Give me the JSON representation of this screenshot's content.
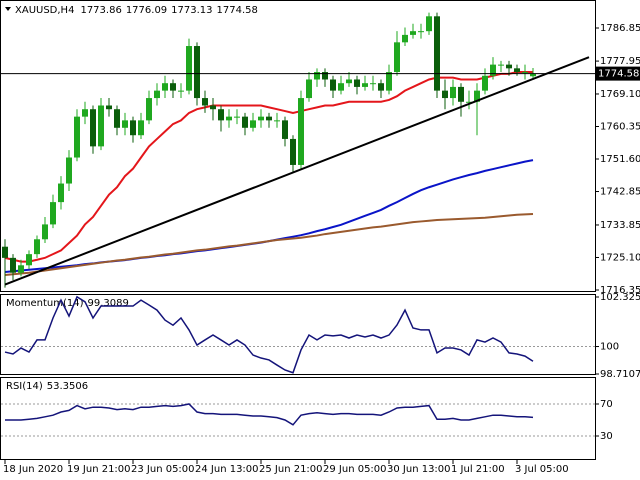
{
  "chart_data": [
    {
      "type": "candlestick",
      "title": "XAUUSD,H4",
      "categories": [
        "18 Jun 2020",
        null,
        null,
        null,
        null,
        null,
        null,
        null,
        "19 Jun 21:00",
        null,
        null,
        null,
        null,
        null,
        null,
        null,
        "23 Jun 05:00",
        null,
        null,
        null,
        null,
        null,
        null,
        null,
        "24 Jun 13:00",
        null,
        null,
        null,
        null,
        null,
        null,
        null,
        "25 Jun 21:00",
        null,
        null,
        null,
        null,
        null,
        null,
        null,
        "29 Jun 05:00",
        null,
        null,
        null,
        null,
        null,
        null,
        null,
        "30 Jun 13:00",
        null,
        null,
        null,
        null,
        null,
        null,
        null,
        "1 Jul 21:00",
        null,
        null,
        null,
        null,
        null,
        null,
        null,
        "3 Jul 05:00",
        null,
        null
      ],
      "open": [
        1728,
        1725,
        1721,
        1723,
        1726,
        1730,
        1734,
        1740,
        1745,
        1752,
        1763,
        1765,
        1755,
        1766,
        1765,
        1760,
        1762,
        1758,
        1762,
        1768,
        1770,
        1772,
        1770,
        1770,
        1782,
        1768,
        1766,
        1765,
        1762,
        1763,
        1763,
        1760,
        1762,
        1763,
        1762,
        1762,
        1757,
        1750,
        1768,
        1773,
        1775,
        1773,
        1770,
        1772,
        1773,
        1771,
        1772,
        1772,
        1770,
        1775,
        1783,
        1785,
        1786,
        1786,
        1790,
        1770,
        1768,
        1771,
        1767,
        1767,
        1770,
        1774,
        1777,
        1777,
        1776,
        1775,
        1773.86
      ],
      "high": [
        1730,
        1726,
        1724.5,
        1727,
        1731,
        1736,
        1742,
        1747,
        1754,
        1765,
        1767,
        1766,
        1768,
        1768,
        1766,
        1764,
        1763,
        1764,
        1770,
        1772,
        1774,
        1773,
        1772,
        1784,
        1783,
        1770,
        1768,
        1766,
        1765,
        1765,
        1764,
        1764,
        1765,
        1764,
        1764,
        1763,
        1758,
        1770,
        1775,
        1776,
        1776,
        1774,
        1774,
        1775,
        1774,
        1774,
        1774,
        1773,
        1777,
        1786,
        1787,
        1788,
        1788,
        1791,
        1791,
        1773,
        1773,
        1772,
        1770,
        1772,
        1776,
        1779,
        1778,
        1778,
        1777,
        1777,
        1776.09
      ],
      "low": [
        1717,
        1719,
        1720,
        1722,
        1725,
        1729,
        1733,
        1738,
        1743,
        1751,
        1761,
        1753,
        1754,
        1763,
        1758,
        1758,
        1756,
        1757,
        1761,
        1766,
        1768,
        1768,
        1768,
        1769,
        1766,
        1764,
        1762,
        1759,
        1760,
        1761,
        1758,
        1759,
        1760,
        1760,
        1760,
        1755,
        1748,
        1749,
        1767,
        1771,
        1771,
        1768,
        1769,
        1771,
        1769,
        1770,
        1770,
        1768,
        1769,
        1774,
        1782,
        1784,
        1784,
        1785,
        1768,
        1765,
        1766,
        1763,
        1765,
        1758,
        1769,
        1773,
        1775,
        1774,
        1774,
        1773,
        1773.13
      ],
      "close": [
        1725,
        1721,
        1723,
        1726,
        1730,
        1734,
        1740,
        1745,
        1752,
        1763,
        1765,
        1755,
        1766,
        1765,
        1760,
        1762,
        1758,
        1762,
        1768,
        1770,
        1772,
        1770,
        1770,
        1782,
        1768,
        1766,
        1765,
        1762,
        1763,
        1763,
        1760,
        1762,
        1763,
        1762,
        1762,
        1757,
        1750,
        1768,
        1773,
        1775,
        1773,
        1770,
        1772,
        1773,
        1771,
        1772,
        1772,
        1770,
        1775,
        1783,
        1785,
        1786,
        1786,
        1790,
        1770,
        1768,
        1771,
        1767,
        1767,
        1770,
        1774,
        1777,
        1777,
        1776,
        1775,
        1775,
        1774.58
      ],
      "up_color": "#1fa81f",
      "down_color": "#0b5e0b",
      "lines": [
        {
          "color": "#e4161b",
          "values": [
            1725,
            1724.5,
            1724,
            1724,
            1724.5,
            1725,
            1726,
            1727,
            1729,
            1731,
            1734,
            1736,
            1739,
            1742,
            1744,
            1747,
            1749,
            1752,
            1755,
            1757,
            1759,
            1761,
            1762,
            1764,
            1765,
            1765.5,
            1766,
            1766,
            1766,
            1766,
            1766,
            1766,
            1766,
            1765.5,
            1765,
            1764.5,
            1764,
            1764.5,
            1765,
            1765.5,
            1766,
            1766,
            1766.5,
            1767,
            1767,
            1767,
            1767,
            1767,
            1767.5,
            1768.5,
            1770,
            1771,
            1772,
            1773,
            1773.5,
            1773.5,
            1773.5,
            1773,
            1773,
            1773,
            1773.5,
            1774,
            1774.5,
            1774.5,
            1775,
            1775,
            1775
          ]
        },
        {
          "color": "#0a14c8",
          "values": [
            1721.2,
            1721.4,
            1721.6,
            1721.8,
            1722,
            1722.2,
            1722.4,
            1722.6,
            1722.8,
            1723,
            1723.3,
            1723.5,
            1723.8,
            1724,
            1724.2,
            1724.4,
            1724.7,
            1725,
            1725.2,
            1725.5,
            1725.7,
            1726,
            1726.2,
            1726.5,
            1726.8,
            1727,
            1727.3,
            1727.6,
            1727.9,
            1728.2,
            1728.5,
            1728.8,
            1729.1,
            1729.5,
            1729.9,
            1730.3,
            1730.7,
            1731.1,
            1731.6,
            1732.2,
            1732.7,
            1733.3,
            1733.9,
            1734.7,
            1735.5,
            1736.3,
            1737.1,
            1737.9,
            1739,
            1740,
            1741.1,
            1742.2,
            1743.2,
            1744,
            1744.7,
            1745.4,
            1746.1,
            1746.7,
            1747.3,
            1747.8,
            1748.4,
            1748.9,
            1749.4,
            1749.9,
            1750.4,
            1750.9,
            1751.3
          ]
        },
        {
          "color": "#9a5a2e",
          "values": [
            1720.4,
            1720.6,
            1720.8,
            1721,
            1721.3,
            1721.6,
            1721.9,
            1722.2,
            1722.5,
            1722.8,
            1723.1,
            1723.4,
            1723.7,
            1724,
            1724.3,
            1724.5,
            1724.8,
            1725.1,
            1725.3,
            1725.6,
            1725.9,
            1726.1,
            1726.4,
            1726.7,
            1727,
            1727.2,
            1727.5,
            1727.8,
            1728.1,
            1728.3,
            1728.6,
            1728.9,
            1729.2,
            1729.5,
            1729.8,
            1730,
            1730.2,
            1730.4,
            1730.7,
            1731,
            1731.4,
            1731.7,
            1732,
            1732.3,
            1732.6,
            1732.9,
            1733.2,
            1733.4,
            1733.7,
            1734,
            1734.3,
            1734.6,
            1734.8,
            1735,
            1735.2,
            1735.3,
            1735.4,
            1735.5,
            1735.6,
            1735.7,
            1735.8,
            1736,
            1736.2,
            1736.4,
            1736.6,
            1736.7,
            1736.8
          ]
        }
      ],
      "trendline": {
        "x": [
          0,
          73
        ],
        "values": [
          1717.8,
          1779
        ],
        "color": "#000000"
      },
      "ylim": [
        1716.35,
        1793.85
      ],
      "yticks": [
        1786.85,
        1777.95,
        {
          "value": 1769.1,
          "label": "1769.10"
        },
        1760.35,
        {
          "value": 1751.6,
          "label": "1751.60"
        },
        1742.85,
        1733.85,
        {
          "value": 1725.1,
          "label": "1725.10"
        },
        1716.35
      ]
    },
    {
      "type": "line",
      "title": "Momentum(14)",
      "color": "#14147a",
      "values": [
        99.74,
        99.65,
        99.93,
        99.74,
        100.31,
        100.31,
        101.34,
        102.18,
        101.43,
        102.33,
        102.1,
        101.34,
        101.9,
        101.9,
        101.9,
        101.9,
        101.9,
        102.18,
        101.95,
        101.71,
        101.24,
        101.0,
        101.34,
        100.78,
        100.07,
        100.31,
        100.54,
        100.31,
        100.07,
        100.31,
        100.07,
        99.6,
        99.46,
        99.37,
        99.13,
        98.9,
        98.77,
        99.84,
        100.54,
        100.31,
        100.54,
        100.5,
        100.54,
        100.4,
        100.54,
        100.45,
        100.54,
        100.4,
        100.54,
        101.01,
        101.71,
        100.87,
        100.78,
        100.78,
        99.7,
        99.93,
        99.93,
        99.84,
        99.6,
        100.31,
        100.21,
        100.4,
        100.21,
        99.7,
        99.65,
        99.55,
        99.3089
      ],
      "ylim": [
        98.7107,
        102.3253
      ],
      "yticks": [
        102.3253,
        100,
        98.7107
      ],
      "levels": [
        100
      ]
    },
    {
      "type": "line",
      "title": "RSI(14)",
      "color": "#14147a",
      "values": [
        50,
        50,
        50,
        51,
        52,
        54,
        56,
        60,
        62,
        68,
        64,
        66,
        66,
        65,
        63,
        64,
        63,
        66,
        66,
        67,
        68,
        67,
        68,
        70,
        60,
        58,
        58,
        57,
        57,
        57,
        56,
        55,
        55,
        54,
        53,
        50,
        44,
        56,
        58,
        59,
        58,
        57,
        58,
        58,
        57,
        57,
        57,
        56,
        60,
        65,
        66,
        66,
        67,
        68,
        51,
        51,
        52,
        50,
        50,
        52,
        54,
        56,
        56,
        55,
        54,
        54,
        53.3506
      ],
      "ylim": [
        0,
        100
      ],
      "yticks": [
        70,
        30
      ],
      "levels": [
        70,
        30
      ]
    }
  ]
}
